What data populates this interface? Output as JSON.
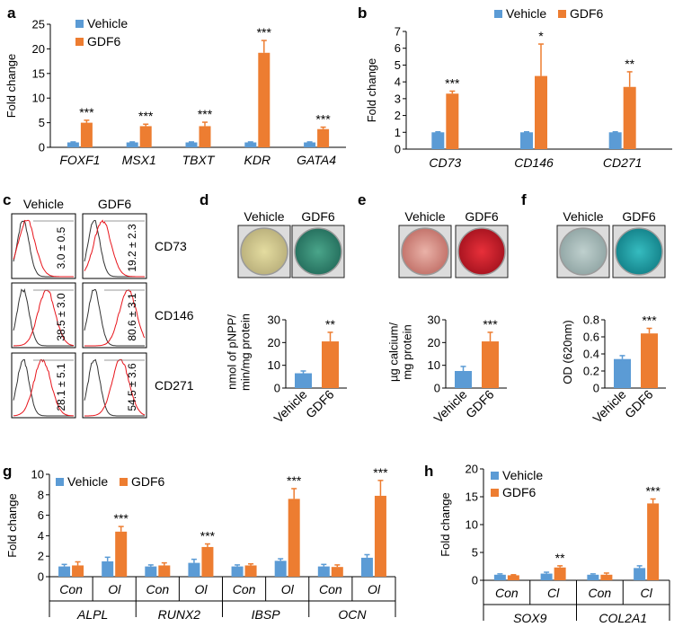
{
  "colors": {
    "vehicle": "#5b9bd5",
    "gdf6": "#ed7d31",
    "axis": "#000000",
    "control_line": "#333333",
    "treated_line": "#e8141b"
  },
  "chart_data": [
    {
      "panel": "a",
      "type": "bar",
      "ylabel": "Fold change",
      "ylim": [
        0,
        25
      ],
      "yticks": [
        0,
        5,
        10,
        15,
        20,
        25
      ],
      "categories": [
        "FOXF1",
        "MSX1",
        "TBXT",
        "KDR",
        "GATA4"
      ],
      "series": [
        {
          "name": "Vehicle",
          "values": [
            1,
            1,
            1,
            1,
            1
          ],
          "errors": [
            0.1,
            0.1,
            0.1,
            0.1,
            0.1
          ]
        },
        {
          "name": "GDF6",
          "values": [
            5.0,
            4.3,
            4.3,
            19.2,
            3.7
          ],
          "errors": [
            0.5,
            0.4,
            0.8,
            2.5,
            0.4
          ]
        }
      ],
      "annotations": [
        "***",
        "***",
        "***",
        "***",
        "***"
      ],
      "legend": "top-left"
    },
    {
      "panel": "b",
      "type": "bar",
      "ylabel": "Fold change",
      "ylim": [
        0,
        7
      ],
      "yticks": [
        0,
        1,
        2,
        3,
        4,
        5,
        6,
        7
      ],
      "categories": [
        "CD73",
        "CD146",
        "CD271"
      ],
      "series": [
        {
          "name": "Vehicle",
          "values": [
            1,
            1,
            1
          ],
          "errors": [
            0.03,
            0.03,
            0.03
          ]
        },
        {
          "name": "GDF6",
          "values": [
            3.3,
            4.35,
            3.7
          ],
          "errors": [
            0.15,
            1.9,
            0.9
          ]
        }
      ],
      "annotations": [
        "***",
        "*",
        "**"
      ],
      "legend": "top"
    },
    {
      "panel": "c",
      "type": "histogram",
      "columns": [
        "Vehicle",
        "GDF6"
      ],
      "rows": [
        {
          "marker": "CD73",
          "values": [
            "3.0 ± 0.5",
            "19.2 ± 2.3"
          ]
        },
        {
          "marker": "CD146",
          "values": [
            "38.5 ± 3.0",
            "80.6 ± 3.1"
          ]
        },
        {
          "marker": "CD271",
          "values": [
            "28.1 ± 5.1",
            "54.5 ± 3.6"
          ]
        }
      ]
    },
    {
      "panel": "d",
      "type": "bar",
      "ylabel": "nmol of pNPP/\nmin/mg protein",
      "ylim": [
        0,
        30
      ],
      "yticks": [
        0,
        10,
        20,
        30
      ],
      "categories": [
        "Vehicle",
        "GDF6"
      ],
      "values": [
        6.5,
        20.5
      ],
      "errors": [
        1.0,
        4.0
      ],
      "annotations": [
        "",
        "**"
      ],
      "photo_labels": [
        "Vehicle",
        "GDF6"
      ]
    },
    {
      "panel": "e",
      "type": "bar",
      "ylabel": "µg calcium/\nmg protein",
      "ylim": [
        0,
        30
      ],
      "yticks": [
        0,
        10,
        20,
        30
      ],
      "categories": [
        "Vehicle",
        "GDF6"
      ],
      "values": [
        7.5,
        20.5
      ],
      "errors": [
        2.0,
        4.0
      ],
      "annotations": [
        "",
        "***"
      ],
      "photo_labels": [
        "Vehicle",
        "GDF6"
      ]
    },
    {
      "panel": "f",
      "type": "bar",
      "ylabel": "OD (620nm)",
      "ylim": [
        0,
        0.8
      ],
      "yticks": [
        0,
        0.2,
        0.4,
        0.6,
        0.8
      ],
      "categories": [
        "Vehicle",
        "GDF6"
      ],
      "values": [
        0.34,
        0.64
      ],
      "errors": [
        0.04,
        0.06
      ],
      "annotations": [
        "",
        "***"
      ],
      "photo_labels": [
        "Vehicle",
        "GDF6"
      ]
    },
    {
      "panel": "g",
      "type": "bar",
      "ylabel": "Fold change",
      "ylim": [
        0,
        10
      ],
      "yticks": [
        0,
        2,
        4,
        6,
        8,
        10
      ],
      "groups": [
        "ALPL",
        "RUNX2",
        "IBSP",
        "OCN"
      ],
      "subcategories": [
        "Con",
        "Ol"
      ],
      "series": [
        {
          "name": "Vehicle",
          "values": [
            1.0,
            1.5,
            1.0,
            1.35,
            1.0,
            1.55,
            1.0,
            1.85
          ],
          "errors": [
            0.2,
            0.4,
            0.15,
            0.35,
            0.15,
            0.2,
            0.2,
            0.3
          ]
        },
        {
          "name": "GDF6",
          "values": [
            1.1,
            4.4,
            1.1,
            2.9,
            1.1,
            7.6,
            0.95,
            7.9
          ],
          "errors": [
            0.35,
            0.5,
            0.25,
            0.3,
            0.15,
            1.0,
            0.2,
            1.5
          ]
        }
      ],
      "annotations": [
        "",
        "***",
        "",
        "***",
        "",
        "***",
        "",
        "***"
      ],
      "legend": "top-left"
    },
    {
      "panel": "h",
      "type": "bar",
      "ylabel": "Fold change",
      "ylim": [
        0,
        20
      ],
      "yticks": [
        0,
        5,
        10,
        15,
        20
      ],
      "groups": [
        "SOX9",
        "COL2A1"
      ],
      "subcategories": [
        "Con",
        "Cl"
      ],
      "series": [
        {
          "name": "Vehicle",
          "values": [
            1.0,
            1.2,
            1.0,
            2.2
          ],
          "errors": [
            0.15,
            0.25,
            0.15,
            0.4
          ]
        },
        {
          "name": "GDF6",
          "values": [
            0.9,
            2.3,
            1.0,
            13.8
          ],
          "errors": [
            0.1,
            0.3,
            0.3,
            0.8
          ]
        }
      ],
      "annotations": [
        "",
        "**",
        "",
        "***"
      ],
      "legend": "top-left"
    }
  ]
}
